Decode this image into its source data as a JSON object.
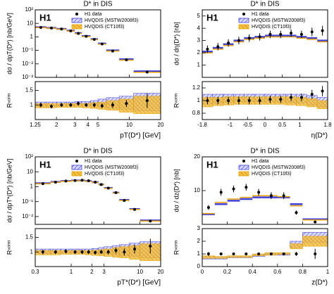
{
  "chart_data": [
    {
      "type": "histogram",
      "title": "D* in DIS",
      "label": "H1",
      "xlabel": "pT(D*) [GeV]",
      "ylabel": "dσ / dpT(D*) [nb/GeV]",
      "logx": true,
      "logy": true,
      "bins": [
        1.25,
        1.6,
        2,
        2.5,
        3,
        3.5,
        4.25,
        5,
        6,
        8,
        11,
        20
      ],
      "xlim": [
        1.25,
        20
      ],
      "xticks": [
        1.25,
        2,
        3,
        4,
        5,
        10,
        20
      ],
      "ylim": [
        0.001,
        100
      ],
      "yticks": [
        {
          "value": 0.001,
          "label": "10⁻³"
        },
        {
          "value": 0.01,
          "label": "10⁻²"
        },
        {
          "value": 0.1,
          "label": "10⁻¹"
        },
        1,
        10,
        {
          "value": 100,
          "label": "10²"
        }
      ],
      "series": [
        {
          "name": "H1 data",
          "color": "#000000",
          "values": [
            5,
            4.5,
            3.8,
            2.8,
            1.8,
            1.1,
            0.65,
            0.3,
            0.09,
            0.02,
            0.0025
          ],
          "errors": [
            0.5,
            0.4,
            0.35,
            0.25,
            0.17,
            0.1,
            0.06,
            0.03,
            0.01,
            0.003,
            0.0006
          ]
        },
        {
          "name": "HVQDIS (MSTW2008f3)",
          "color": "#4040d8",
          "values": [
            5.2,
            4.6,
            3.9,
            2.9,
            1.9,
            1.15,
            0.68,
            0.32,
            0.1,
            0.022,
            0.0028
          ]
        },
        {
          "name": "HVQDIS (CT10f3)",
          "color": "#e8a000",
          "values": [
            4.9,
            4.4,
            3.7,
            2.7,
            1.75,
            1.05,
            0.62,
            0.29,
            0.088,
            0.019,
            0.0024
          ]
        }
      ],
      "ratio": {
        "ylabel": "Rⁿᵒʳᵐ",
        "ylim": [
          0.5,
          1.8
        ],
        "yticks": [
          1,
          1.5
        ],
        "data": {
          "values": [
            1.0,
            0.95,
            1.0,
            1.0,
            1.05,
            1.0,
            1.0,
            0.97,
            1.0,
            1.05,
            1.15
          ],
          "errors": [
            0.08,
            0.07,
            0.07,
            0.07,
            0.07,
            0.07,
            0.08,
            0.08,
            0.1,
            0.12,
            0.25
          ]
        },
        "bands": [
          {
            "low": [
              0.95,
              0.96,
              0.97,
              0.97,
              0.97,
              0.97,
              0.95,
              0.95,
              0.9,
              0.85,
              0.8
            ],
            "high": [
              1.1,
              1.1,
              1.1,
              1.1,
              1.12,
              1.12,
              1.15,
              1.2,
              1.25,
              1.3,
              1.4
            ]
          },
          {
            "low": [
              0.9,
              0.9,
              0.92,
              0.92,
              0.92,
              0.9,
              0.88,
              0.85,
              0.82,
              0.75,
              0.7
            ],
            "high": [
              1.05,
              1.05,
              1.05,
              1.05,
              1.05,
              1.05,
              1.08,
              1.1,
              1.15,
              1.2,
              1.3
            ]
          }
        ]
      }
    },
    {
      "type": "histogram",
      "title": "D* in DIS",
      "label": "H1",
      "xlabel": "η(D*)",
      "ylabel": "dσ / dη(D*) [nb]",
      "logx": false,
      "logy": false,
      "bins": [
        -1.8,
        -1.5,
        -1.2,
        -0.9,
        -0.6,
        -0.3,
        0,
        0.3,
        0.6,
        0.9,
        1.2,
        1.5,
        1.8
      ],
      "xlim": [
        -1.8,
        1.8
      ],
      "xticks": [
        -1.8,
        -1,
        -0.5,
        0,
        0.5,
        1,
        1.8
      ],
      "ylim": [
        0,
        5.5
      ],
      "yticks": [
        1,
        2,
        3,
        4,
        5
      ],
      "series": [
        {
          "name": "H1 data",
          "color": "#000000",
          "values": [
            2.3,
            2.5,
            2.8,
            3.0,
            3.2,
            3.3,
            3.5,
            3.5,
            3.6,
            3.5,
            3.7,
            3.8
          ],
          "errors": [
            0.3,
            0.3,
            0.3,
            0.3,
            0.3,
            0.3,
            0.3,
            0.3,
            0.3,
            0.3,
            0.35,
            0.4
          ]
        },
        {
          "name": "HVQDIS (MSTW2008f3)",
          "color": "#4040d8",
          "values": [
            2.1,
            2.4,
            2.7,
            3.0,
            3.2,
            3.3,
            3.4,
            3.4,
            3.4,
            3.3,
            3.2,
            3.0
          ]
        },
        {
          "name": "HVQDIS (CT10f3)",
          "color": "#e8a000",
          "values": [
            2.0,
            2.3,
            2.6,
            2.9,
            3.1,
            3.2,
            3.3,
            3.3,
            3.3,
            3.2,
            3.1,
            2.9
          ]
        }
      ],
      "ratio": {
        "ylabel": "Rⁿᵒʳᵐ",
        "ylim": [
          0.7,
          1.3
        ],
        "yticks": [
          0.8,
          1,
          1.2
        ],
        "data": {
          "values": [
            1.0,
            1.0,
            1.0,
            1.0,
            1.0,
            1.0,
            1.02,
            1.02,
            1.05,
            1.05,
            1.1,
            1.15
          ],
          "errors": [
            0.06,
            0.06,
            0.06,
            0.06,
            0.06,
            0.06,
            0.06,
            0.06,
            0.06,
            0.06,
            0.07,
            0.08
          ]
        },
        "bands": [
          {
            "low": [
              0.95,
              0.96,
              0.97,
              0.98,
              0.98,
              0.98,
              0.98,
              0.98,
              0.97,
              0.96,
              0.93,
              0.9
            ],
            "high": [
              1.1,
              1.1,
              1.1,
              1.1,
              1.1,
              1.1,
              1.1,
              1.1,
              1.1,
              1.1,
              1.08,
              1.05
            ]
          },
          {
            "low": [
              0.9,
              0.92,
              0.93,
              0.94,
              0.94,
              0.94,
              0.94,
              0.94,
              0.93,
              0.92,
              0.9,
              0.87
            ],
            "high": [
              1.05,
              1.05,
              1.06,
              1.06,
              1.06,
              1.06,
              1.06,
              1.06,
              1.06,
              1.05,
              1.03,
              1.0
            ]
          }
        ]
      }
    },
    {
      "type": "histogram",
      "title": "D* in DIS",
      "label": "H1",
      "xlabel": "pT*(D*) [GeV]",
      "ylabel": "dσ / dpT*(D*) [nb/GeV]",
      "logx": true,
      "logy": true,
      "bins": [
        0.3,
        0.5,
        0.7,
        1,
        1.3,
        1.6,
        2,
        2.5,
        3,
        4,
        5,
        7,
        10,
        20
      ],
      "xlim": [
        0.3,
        20
      ],
      "xticks": [
        0.3,
        1,
        2,
        3,
        10,
        20
      ],
      "ylim": [
        0.003,
        100
      ],
      "yticks": [
        {
          "value": 0.01,
          "label": "10⁻²"
        },
        {
          "value": 0.1,
          "label": "10⁻¹"
        },
        1,
        10,
        {
          "value": 100,
          "label": "10²"
        }
      ],
      "series": [
        {
          "name": "H1 data",
          "color": "#000000",
          "values": [
            1.6,
            2.0,
            2.4,
            2.6,
            2.7,
            2.5,
            2.0,
            1.4,
            0.8,
            0.4,
            0.12,
            0.03,
            0.005
          ],
          "errors": [
            0.2,
            0.2,
            0.2,
            0.2,
            0.2,
            0.2,
            0.15,
            0.12,
            0.07,
            0.04,
            0.012,
            0.004,
            0.001
          ]
        },
        {
          "name": "HVQDIS (MSTW2008f3)",
          "color": "#4040d8",
          "values": [
            1.7,
            2.1,
            2.4,
            2.6,
            2.6,
            2.4,
            2.0,
            1.4,
            0.82,
            0.4,
            0.13,
            0.032,
            0.0055
          ]
        },
        {
          "name": "HVQDIS (CT10f3)",
          "color": "#e8a000",
          "values": [
            1.6,
            2.0,
            2.3,
            2.5,
            2.5,
            2.3,
            1.9,
            1.35,
            0.78,
            0.38,
            0.12,
            0.03,
            0.005
          ]
        }
      ],
      "ratio": {
        "ylabel": "Rⁿᵒʳᵐ",
        "ylim": [
          0.5,
          1.8
        ],
        "yticks": [
          1,
          1.5
        ],
        "data": {
          "values": [
            1.0,
            1.0,
            1.02,
            1.0,
            1.0,
            1.0,
            0.98,
            1.0,
            1.0,
            1.05,
            1.0,
            1.1,
            1.2
          ],
          "errors": [
            0.08,
            0.07,
            0.07,
            0.07,
            0.07,
            0.07,
            0.07,
            0.07,
            0.08,
            0.1,
            0.12,
            0.15,
            0.25
          ]
        },
        "bands": [
          {
            "low": [
              0.95,
              0.96,
              0.97,
              0.97,
              0.97,
              0.96,
              0.95,
              0.95,
              0.93,
              0.9,
              0.88,
              0.85,
              0.8
            ],
            "high": [
              1.1,
              1.1,
              1.1,
              1.1,
              1.1,
              1.1,
              1.12,
              1.15,
              1.18,
              1.22,
              1.25,
              1.3,
              1.35
            ]
          },
          {
            "low": [
              0.9,
              0.9,
              0.92,
              0.92,
              0.92,
              0.9,
              0.88,
              0.87,
              0.85,
              0.82,
              0.8,
              0.75,
              0.7
            ],
            "high": [
              1.05,
              1.05,
              1.05,
              1.05,
              1.05,
              1.05,
              1.06,
              1.08,
              1.1,
              1.15,
              1.18,
              1.22,
              1.28
            ]
          }
        ]
      }
    },
    {
      "type": "histogram",
      "title": "D* in DIS",
      "label": "H1",
      "xlabel": "z(D*)",
      "ylabel": "dσ / dz(D*) [nb]",
      "logx": false,
      "logy": false,
      "bins": [
        0,
        0.1,
        0.2,
        0.3,
        0.4,
        0.5,
        0.6,
        0.7,
        0.8,
        1.0
      ],
      "xlim": [
        0,
        1
      ],
      "xticks": [
        0,
        0.2,
        0.4,
        0.6,
        0.8,
        1
      ],
      "ylim": [
        0,
        20
      ],
      "yticks": [
        10,
        20
      ],
      "series": [
        {
          "name": "H1 data",
          "color": "#000000",
          "values": [
            5,
            9.5,
            10.5,
            11,
            9.5,
            8.5,
            8.5,
            3.5,
            0.7
          ],
          "errors": [
            0.7,
            1,
            1,
            1,
            1,
            1,
            1,
            0.6,
            0.3
          ]
        },
        {
          "name": "HVQDIS (MSTW2008f3)",
          "color": "#4040d8",
          "values": [
            3,
            6,
            7,
            7.5,
            8,
            8,
            8,
            6,
            1.5
          ]
        },
        {
          "name": "HVQDIS (CT10f3)",
          "color": "#e8a000",
          "values": [
            3.2,
            6.5,
            7.5,
            8,
            8.5,
            8.5,
            8.2,
            5.5,
            1.3
          ]
        }
      ],
      "ratio": {
        "ylabel": "Rⁿᵒʳᵐ",
        "ylim": [
          0,
          3
        ],
        "yticks": [
          0,
          1,
          2,
          3
        ],
        "data": {
          "values": [
            1,
            1,
            1,
            1,
            1,
            1,
            1,
            1,
            1
          ],
          "errors": [
            0.15,
            0.1,
            0.1,
            0.1,
            0.1,
            0.1,
            0.1,
            0.15,
            0.4
          ]
        },
        "bands": [
          {
            "low": [
              0.6,
              0.6,
              0.7,
              0.7,
              0.8,
              0.9,
              0.9,
              1.5,
              1.9
            ],
            "high": [
              0.8,
              0.75,
              0.8,
              0.8,
              0.95,
              1.05,
              1.05,
              2.0,
              2.7
            ]
          },
          {
            "low": [
              0.65,
              0.65,
              0.72,
              0.72,
              0.85,
              0.9,
              0.95,
              1.4,
              1.6
            ],
            "high": [
              0.85,
              0.8,
              0.85,
              0.85,
              1.0,
              1.1,
              1.1,
              1.8,
              2.4
            ]
          }
        ]
      }
    }
  ]
}
